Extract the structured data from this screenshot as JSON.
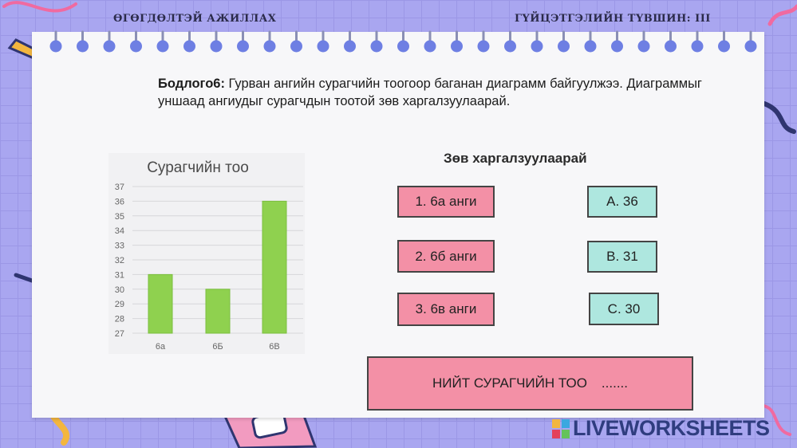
{
  "header": {
    "left_title": "ӨГӨГДӨЛТЭЙ АЖИЛЛАХ",
    "right_title": "ГҮЙЦЭТГЭЛИЙН ТҮВШИН: III"
  },
  "problem": {
    "label": "Бодлого6:",
    "text": "Гурван ангийн сурагчийн тоогоор баганан диаграмм байгуулжээ. Диаграммыг уншаад ангиудыг сурагчдын тоотой зөв харгалзуулаарай."
  },
  "chart_data": {
    "type": "bar",
    "title": "Сурагчийн тоо",
    "categories": [
      "6а",
      "6Б",
      "6В"
    ],
    "values": [
      31,
      30,
      36
    ],
    "ylim": [
      27,
      37
    ],
    "yticks": [
      37,
      36,
      35,
      34,
      33,
      32,
      31,
      30,
      29,
      28,
      27
    ],
    "grid": true,
    "bar_color": "#8fd14f"
  },
  "match": {
    "title": "Зөв харгалзуулаарай",
    "left": [
      "1. 6а анги",
      "2. 6б анги",
      "3. 6в анги"
    ],
    "right": [
      "A. 36",
      "B. 31",
      "C. 30"
    ]
  },
  "total": {
    "label": "НИЙТ СУРАГЧИЙН ТОО",
    "placeholder": "......."
  },
  "brand": {
    "name": "LIVEWORKSHEETS"
  },
  "colors": {
    "background": "#a9a6f0",
    "pink_box": "#f390a6",
    "mint_box": "#aee7df",
    "ring": "#6e7fe3"
  }
}
